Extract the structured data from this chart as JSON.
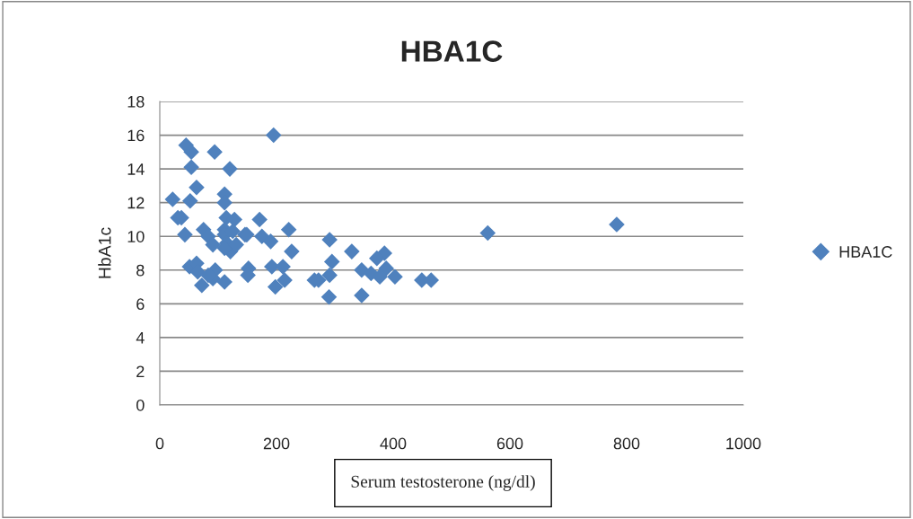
{
  "chart_data": {
    "type": "scatter",
    "title": "HBA1C",
    "xlabel": "Serum testosterone (ng/dl)",
    "ylabel": "HbA1c",
    "xlim": [
      0,
      1000
    ],
    "xticks": [
      0,
      200,
      400,
      600,
      800,
      1000
    ],
    "ylim": [
      0,
      18
    ],
    "yticks": [
      0,
      2,
      4,
      6,
      8,
      10,
      12,
      14,
      16,
      18
    ],
    "grid": "y",
    "legend": "right",
    "marker": "diamond",
    "series": [
      {
        "name": "HBA1C",
        "color": "#4f81bd",
        "x": [
          45,
          54,
          94,
          195,
          54,
          120,
          63,
          22,
          52,
          111,
          111,
          31,
          37,
          114,
          128,
          171,
          43,
          75,
          83,
          91,
          111,
          111,
          125,
          146,
          115,
          121,
          111,
          221,
          226,
          51,
          63,
          65,
          72,
          95,
          91,
          111,
          83,
          152,
          151,
          192,
          211,
          214,
          198,
          265,
          131,
          149,
          175,
          190,
          291,
          329,
          295,
          272,
          291,
          290,
          346,
          362,
          385,
          372,
          388,
          377,
          403,
          346,
          449,
          465,
          562,
          783
        ],
        "values": [
          15.4,
          15.0,
          15.0,
          16.0,
          14.1,
          14.0,
          12.9,
          12.2,
          12.1,
          12.5,
          12.0,
          11.1,
          11.1,
          11.1,
          11.0,
          11.0,
          10.1,
          10.4,
          10.0,
          9.5,
          10.4,
          10.1,
          10.3,
          10.1,
          9.6,
          9.1,
          9.3,
          10.4,
          9.1,
          8.2,
          8.4,
          7.9,
          7.1,
          8.0,
          7.5,
          7.3,
          7.7,
          8.1,
          7.7,
          8.2,
          8.2,
          7.4,
          7.0,
          7.4,
          9.5,
          10.1,
          10.0,
          9.7,
          9.8,
          9.1,
          8.5,
          7.4,
          7.7,
          6.4,
          8.0,
          7.8,
          9.0,
          8.7,
          8.1,
          7.6,
          7.6,
          6.5,
          7.4,
          7.4,
          10.2,
          10.7
        ]
      }
    ]
  }
}
